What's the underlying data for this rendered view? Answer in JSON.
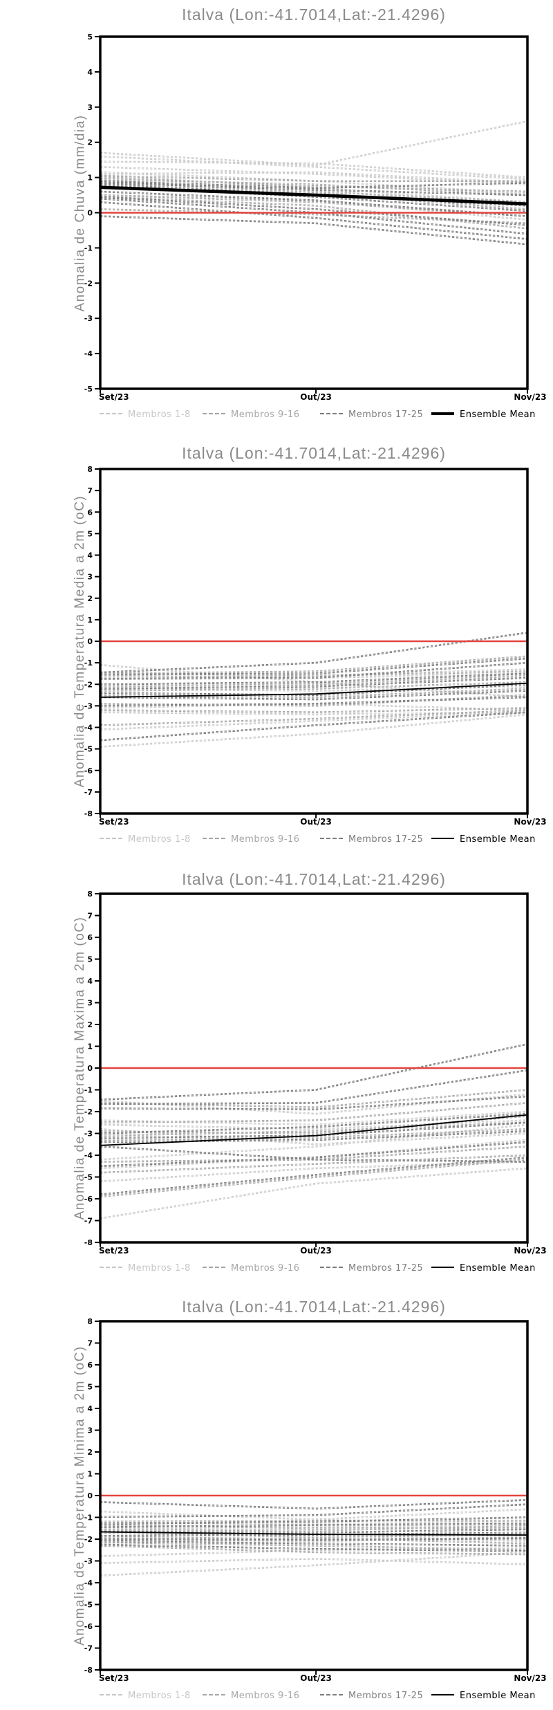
{
  "page": {
    "background": "#ffffff"
  },
  "colors": {
    "members_1_8": "#cbcbcb",
    "members_9_16": "#a9a9a9",
    "members_17_25": "#7d7d7d",
    "ensemble_mean": "#000000",
    "zero_line": "#e2453f",
    "title_gray": "#8a8a8a",
    "axis_black": "#000000"
  },
  "legend": {
    "items": [
      {
        "label": "Membros 1-8",
        "color": "#c6c6c6",
        "style": "dashed"
      },
      {
        "label": "Membros 9-16",
        "color": "#a6a6a6",
        "style": "dashed"
      },
      {
        "label": "Membros 17-25",
        "color": "#7d7d7d",
        "style": "dashed"
      },
      {
        "label": "Ensemble Mean",
        "color": "#000000",
        "style": "solid"
      }
    ]
  },
  "chart_data": [
    {
      "type": "line",
      "title": "Italva (Lon:-41.7014,Lat:-21.4296)",
      "ylabel": "Anomalia de Chuva (mm/dia)",
      "x": [
        "Set/23",
        "Out/23",
        "Nov/23"
      ],
      "x_positions": [
        0,
        0.505,
        1
      ],
      "ylim": [
        -5,
        5
      ],
      "ytick_step": 1,
      "grid": false,
      "zero_line": 0,
      "legend_position": "bottom",
      "series": [
        {
          "name": "Membros 1-8",
          "color": "#cbcbcb",
          "style": "dashed",
          "members": [
            [
              1.7,
              1.35,
              2.6
            ],
            [
              1.6,
              1.3,
              0.95
            ],
            [
              1.45,
              1.4,
              1.0
            ],
            [
              1.3,
              1.1,
              0.8
            ],
            [
              1.15,
              0.9,
              0.55
            ],
            [
              1.1,
              1.15,
              0.85
            ],
            [
              1.05,
              0.7,
              0.3
            ],
            [
              0.5,
              0.35,
              -0.2
            ]
          ]
        },
        {
          "name": "Membros 9-16",
          "color": "#a9a9a9",
          "style": "dashed",
          "members": [
            [
              1.05,
              0.9,
              0.9
            ],
            [
              1.0,
              0.75,
              0.6
            ],
            [
              0.95,
              0.8,
              0.5
            ],
            [
              0.9,
              0.6,
              0.3
            ],
            [
              0.85,
              0.55,
              0.1
            ],
            [
              0.5,
              0.3,
              -0.1
            ],
            [
              0.45,
              0.2,
              -0.45
            ],
            [
              0.1,
              -0.05,
              -0.3
            ]
          ]
        },
        {
          "name": "Membros 17-25",
          "color": "#7d7d7d",
          "style": "dashed",
          "members": [
            [
              0.9,
              0.7,
              0.85
            ],
            [
              0.85,
              0.65,
              0.5
            ],
            [
              0.8,
              0.5,
              0.2
            ],
            [
              0.75,
              0.45,
              0.05
            ],
            [
              0.6,
              0.35,
              -0.1
            ],
            [
              0.45,
              0.1,
              -0.35
            ],
            [
              0.4,
              0.0,
              -0.6
            ],
            [
              0.3,
              -0.15,
              -0.75
            ],
            [
              -0.1,
              -0.3,
              -0.9
            ]
          ]
        }
      ],
      "ensemble_mean": {
        "name": "Ensemble Mean",
        "color": "#000000",
        "style": "solid",
        "values": [
          0.72,
          0.5,
          0.25
        ]
      }
    },
    {
      "type": "line",
      "title": "Italva (Lon:-41.7014,Lat:-21.4296)",
      "ylabel": "Anomalia de Temperatura Media a 2m (oC)",
      "x": [
        "Set/23",
        "Out/23",
        "Nov/23"
      ],
      "x_positions": [
        0,
        0.505,
        1
      ],
      "ylim": [
        -8,
        8
      ],
      "ytick_step": 1,
      "grid": false,
      "zero_line": 0,
      "legend_position": "bottom",
      "series": [
        {
          "name": "Membros 1-8",
          "color": "#cbcbcb",
          "style": "dashed",
          "members": [
            [
              -1.1,
              -1.9,
              -2.6
            ],
            [
              -1.5,
              -1.6,
              -1.3
            ],
            [
              -1.6,
              -1.7,
              -1.5
            ],
            [
              -2.2,
              -2.3,
              -2.1
            ],
            [
              -3.1,
              -2.9,
              -3.2
            ],
            [
              -3.3,
              -3.4,
              -3.3
            ],
            [
              -4.1,
              -3.7,
              -3.3
            ],
            [
              -4.9,
              -4.3,
              -3.4
            ]
          ]
        },
        {
          "name": "Membros 9-16",
          "color": "#a9a9a9",
          "style": "dashed",
          "members": [
            [
              -1.5,
              -1.4,
              -0.7
            ],
            [
              -1.7,
              -1.6,
              -1.4
            ],
            [
              -2.1,
              -2.0,
              -1.6
            ],
            [
              -2.3,
              -2.2,
              -1.9
            ],
            [
              -2.5,
              -2.6,
              -2.2
            ],
            [
              -2.9,
              -3.0,
              -2.5
            ],
            [
              -3.2,
              -3.3,
              -3.1
            ],
            [
              -3.9,
              -3.6,
              -3.2
            ]
          ]
        },
        {
          "name": "Membros 17-25",
          "color": "#7d7d7d",
          "style": "dashed",
          "members": [
            [
              -1.45,
              -1.0,
              0.4
            ],
            [
              -1.55,
              -1.5,
              -0.8
            ],
            [
              -1.75,
              -1.7,
              -1.0
            ],
            [
              -2.0,
              -1.9,
              -1.5
            ],
            [
              -2.2,
              -2.1,
              -1.7
            ],
            [
              -2.4,
              -2.5,
              -2.0
            ],
            [
              -2.6,
              -2.7,
              -2.3
            ],
            [
              -3.0,
              -2.9,
              -2.6
            ],
            [
              -4.6,
              -3.9,
              -3.3
            ]
          ]
        }
      ],
      "ensemble_mean": {
        "name": "Ensemble Mean",
        "color": "#000000",
        "style": "solid",
        "values": [
          -2.6,
          -2.45,
          -1.95
        ]
      }
    },
    {
      "type": "line",
      "title": "Italva (Lon:-41.7014,Lat:-21.4296)",
      "ylabel": "Anomalia de Temperatura Maxima a 2m (oC)",
      "x": [
        "Set/23",
        "Out/23",
        "Nov/23"
      ],
      "x_positions": [
        0,
        0.505,
        1
      ],
      "ylim": [
        -8,
        8
      ],
      "ytick_step": 1,
      "grid": false,
      "zero_line": 0,
      "legend_position": "bottom",
      "series": [
        {
          "name": "Membros 1-8",
          "color": "#cbcbcb",
          "style": "dashed",
          "members": [
            [
              -1.5,
              -2.1,
              -1.2
            ],
            [
              -2.4,
              -2.6,
              -2.0
            ],
            [
              -2.6,
              -2.8,
              -2.4
            ],
            [
              -2.8,
              -3.5,
              -3.0
            ],
            [
              -4.2,
              -3.6,
              -2.6
            ],
            [
              -4.6,
              -4.1,
              -3.3
            ],
            [
              -5.2,
              -4.6,
              -4.3
            ],
            [
              -6.9,
              -5.3,
              -4.6
            ]
          ]
        },
        {
          "name": "Membros 9-16",
          "color": "#a9a9a9",
          "style": "dashed",
          "members": [
            [
              -1.6,
              -1.8,
              -1.0
            ],
            [
              -2.5,
              -2.4,
              -1.6
            ],
            [
              -2.9,
              -3.0,
              -2.2
            ],
            [
              -3.1,
              -2.9,
              -2.5
            ],
            [
              -3.3,
              -3.2,
              -2.8
            ],
            [
              -4.3,
              -4.2,
              -3.6
            ],
            [
              -4.8,
              -4.4,
              -4.0
            ],
            [
              -5.9,
              -5.0,
              -4.2
            ]
          ]
        },
        {
          "name": "Membros 17-25",
          "color": "#7d7d7d",
          "style": "dashed",
          "members": [
            [
              -1.45,
              -1.0,
              1.1
            ],
            [
              -1.65,
              -1.6,
              -0.1
            ],
            [
              -1.85,
              -1.9,
              -1.3
            ],
            [
              -3.0,
              -2.7,
              -2.1
            ],
            [
              -3.2,
              -3.1,
              -2.5
            ],
            [
              -3.4,
              -3.3,
              -2.9
            ],
            [
              -3.6,
              -4.2,
              -4.3
            ],
            [
              -4.5,
              -4.1,
              -3.4
            ],
            [
              -5.8,
              -4.9,
              -4.1
            ]
          ]
        }
      ],
      "ensemble_mean": {
        "name": "Ensemble Mean",
        "color": "#000000",
        "style": "solid",
        "values": [
          -3.55,
          -3.1,
          -2.15
        ]
      }
    },
    {
      "type": "line",
      "title": "Italva (Lon:-41.7014,Lat:-21.4296)",
      "ylabel": "Anomalia de Temperatura Minima a 2m (oC)",
      "x": [
        "Set/23",
        "Out/23",
        "Nov/23"
      ],
      "x_positions": [
        0,
        0.505,
        1
      ],
      "ylim": [
        -8,
        8
      ],
      "ytick_step": 1,
      "grid": false,
      "zero_line": 0,
      "legend_position": "bottom",
      "series": [
        {
          "name": "Membros 1-8",
          "color": "#cbcbcb",
          "style": "dashed",
          "members": [
            [
              -0.73,
              -1.1,
              -0.63
            ],
            [
              -1.25,
              -1.3,
              -1.2
            ],
            [
              -1.5,
              -1.45,
              -1.35
            ],
            [
              -1.6,
              -1.8,
              -2.1
            ],
            [
              -2.0,
              -2.1,
              -1.9
            ],
            [
              -2.78,
              -2.5,
              -2.4
            ],
            [
              -3.1,
              -2.9,
              -3.16
            ],
            [
              -3.67,
              -3.2,
              -2.6
            ]
          ]
        },
        {
          "name": "Membros 9-16",
          "color": "#a9a9a9",
          "style": "dashed",
          "members": [
            [
              -1.2,
              -1.15,
              -1.15
            ],
            [
              -1.35,
              -1.5,
              -1.5
            ],
            [
              -1.55,
              -1.6,
              -1.4
            ],
            [
              -1.7,
              -1.9,
              -1.8
            ],
            [
              -1.9,
              -2.0,
              -2.0
            ],
            [
              -2.05,
              -1.95,
              -2.2
            ],
            [
              -2.15,
              -2.3,
              -2.5
            ],
            [
              -2.3,
              -2.6,
              -2.7
            ]
          ]
        },
        {
          "name": "Membros 17-25",
          "color": "#7d7d7d",
          "style": "dashed",
          "members": [
            [
              -0.3,
              -0.6,
              -0.2
            ],
            [
              -0.98,
              -0.9,
              -0.4
            ],
            [
              -1.3,
              -1.2,
              -1.0
            ],
            [
              -1.45,
              -1.35,
              -1.3
            ],
            [
              -1.65,
              -1.7,
              -1.55
            ],
            [
              -1.85,
              -1.8,
              -1.7
            ],
            [
              -2.0,
              -2.05,
              -1.95
            ],
            [
              -2.1,
              -2.2,
              -2.3
            ],
            [
              -2.25,
              -2.45,
              -2.55
            ]
          ]
        }
      ],
      "ensemble_mean": {
        "name": "Ensemble Mean",
        "color": "#000000",
        "style": "solid",
        "values": [
          -1.67,
          -1.78,
          -1.81
        ]
      }
    }
  ]
}
